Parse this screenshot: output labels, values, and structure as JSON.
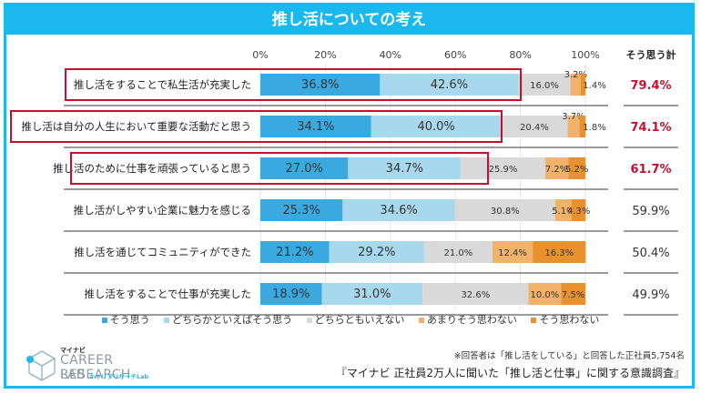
{
  "title": "推し活についての考え",
  "total_header": "そう思う計",
  "legend": [
    {
      "label": "そう思う",
      "color": "#3aa9e0"
    },
    {
      "label": "どちらかといえばそう思う",
      "color": "#a8d8ee"
    },
    {
      "label": "どちらともいえない",
      "color": "#d9d9d9"
    },
    {
      "label": "あまりそう思わない",
      "color": "#f2b26b"
    },
    {
      "label": "そう思わない",
      "color": "#e8912f"
    }
  ],
  "note": "※回答者は「推し活をしている」と回答した正社員5,754名",
  "source": "『マイナビ 正社員2万人に聞いた「推し活と仕事」に関する意識調査』",
  "logo": {
    "brand": "マイナビ",
    "line1": "CAREER RESEARCH",
    "line2": "LAB",
    "sub": "キャリアリサーチLab"
  },
  "chart_data": {
    "type": "bar",
    "orientation": "horizontal-stacked-100",
    "title": "推し活についての考え",
    "xlim": [
      0,
      100
    ],
    "x_ticks": [
      "0%",
      "20%",
      "40%",
      "60%",
      "80%",
      "100%"
    ],
    "grid": true,
    "legend_position": "bottom",
    "categories": [
      "推し活をすることで私生活が充実した",
      "推し活は自分の人生において重要な活動だと思う",
      "推し活のために仕事を頑張っていると思う",
      "推し活がしやすい企業に魅力を感じる",
      "推し活を通じてコミュニティができた",
      "推し活をすることで仕事が充実した"
    ],
    "highlighted": [
      true,
      true,
      true,
      false,
      false,
      false
    ],
    "series": [
      {
        "name": "そう思う",
        "values": [
          36.8,
          34.1,
          27.0,
          25.3,
          21.2,
          18.9
        ]
      },
      {
        "name": "どちらかといえばそう思う",
        "values": [
          42.6,
          40.0,
          34.7,
          34.6,
          29.2,
          31.0
        ]
      },
      {
        "name": "どちらともいえない",
        "values": [
          16.0,
          20.4,
          25.9,
          30.8,
          21.0,
          32.6
        ]
      },
      {
        "name": "あまりそう思わない",
        "values": [
          3.2,
          3.7,
          7.2,
          5.1,
          12.4,
          10.0
        ]
      },
      {
        "name": "そう思わない",
        "values": [
          1.4,
          1.8,
          5.2,
          4.3,
          16.3,
          7.5
        ]
      }
    ],
    "totals": [
      "79.4%",
      "74.1%",
      "61.7%",
      "59.9%",
      "50.4%",
      "49.9%"
    ],
    "totals_highlighted": [
      true,
      true,
      true,
      false,
      false,
      false
    ],
    "highlight_color": "#c8102e"
  }
}
